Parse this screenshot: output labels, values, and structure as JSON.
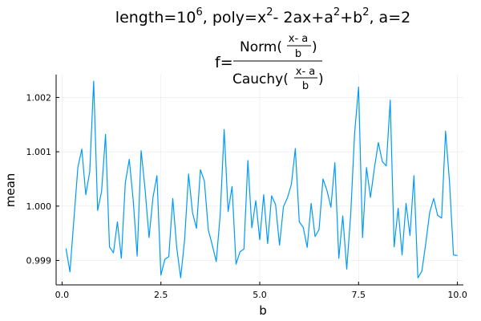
{
  "chart_data": {
    "type": "line",
    "title_line1": {
      "prefix": "length=10",
      "exp1": "6",
      "mid1": ", poly=x",
      "exp2": "2",
      "mid2": "- 2ax+a",
      "exp3": "2",
      "mid3": "+b",
      "exp4": "2",
      "suffix": ", a=2"
    },
    "title_line2": {
      "lhs": "f=",
      "num_func": "Norm(",
      "den_func": "Cauchy(",
      "inner_num": "x- a",
      "inner_den": "b",
      "close": ")"
    },
    "xlabel": "b",
    "ylabel": "mean",
    "xlim": [
      -0.15,
      10.15
    ],
    "ylim": [
      0.99855,
      1.00242
    ],
    "xticks": [
      0.0,
      2.5,
      5.0,
      7.5,
      10.0
    ],
    "xtick_labels": [
      "0.0",
      "2.5",
      "5.0",
      "7.5",
      "10.0"
    ],
    "yticks": [
      0.999,
      1.0,
      1.001,
      1.002
    ],
    "ytick_labels": [
      "0.999",
      "1.000",
      "1.001",
      "1.002"
    ],
    "grid": true,
    "legend": "none",
    "series_color": "#009AF9",
    "x_start": 0.1,
    "x_step": 0.1,
    "values": [
      0.99922,
      0.99879,
      0.99976,
      1.00071,
      1.00105,
      1.00021,
      1.00063,
      1.0023,
      0.99992,
      1.00027,
      1.00132,
      0.99925,
      0.99914,
      0.99971,
      0.99904,
      1.00043,
      1.00086,
      1.00011,
      0.99908,
      1.00102,
      1.00031,
      0.99942,
      1.00016,
      1.00056,
      0.99873,
      0.99902,
      0.99907,
      1.00014,
      0.99924,
      0.99868,
      0.99938,
      1.00059,
      0.99988,
      0.99959,
      1.00067,
      1.00046,
      0.99956,
      0.99928,
      0.99898,
      0.99984,
      1.00141,
      0.9999,
      1.00036,
      0.99893,
      0.99916,
      0.99921,
      1.00084,
      0.9996,
      1.0001,
      0.99938,
      1.00021,
      0.99931,
      1.00019,
      1.00003,
      0.99928,
      0.99999,
      1.00015,
      1.0004,
      1.00106,
      0.99971,
      0.99961,
      0.99924,
      1.00005,
      0.99944,
      0.99957,
      1.0005,
      1.00029,
      0.99998,
      1.0008,
      0.99904,
      0.99982,
      0.99884,
      0.99984,
      1.00135,
      1.00219,
      0.99942,
      1.00071,
      1.00016,
      1.0007,
      1.00117,
      1.00082,
      1.00074,
      1.00195,
      0.99925,
      0.99996,
      0.9991,
      1.00005,
      0.99946,
      1.00056,
      0.99868,
      0.9988,
      0.99932,
      0.99989,
      1.00014,
      0.99983,
      0.99978,
      1.00138,
      1.00044,
      0.9991,
      0.99909
    ]
  }
}
